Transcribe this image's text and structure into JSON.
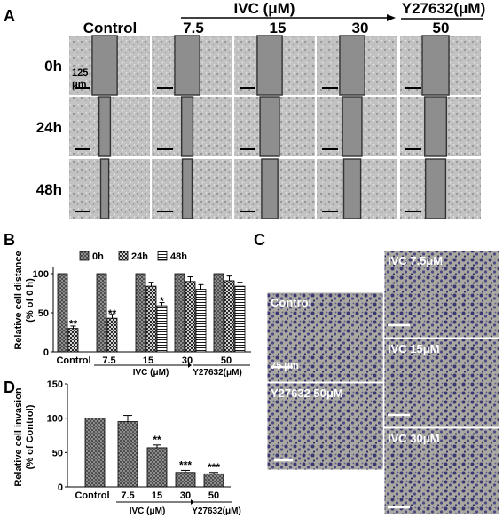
{
  "panel_a": {
    "letter": "A",
    "header_control": "Control",
    "header_ivc": "IVC (μM)",
    "header_y27632": "Y27632(μM)",
    "dose_labels": [
      "7.5",
      "15",
      "30",
      "50"
    ],
    "row_labels": [
      "0h",
      "24h",
      "48h"
    ],
    "scale_label": "125 μm",
    "gap_fraction": [
      [
        0.31,
        0.31,
        0.31,
        0.31,
        0.33
      ],
      [
        0.14,
        0.14,
        0.24,
        0.24,
        0.27
      ],
      [
        0.1,
        0.12,
        0.2,
        0.21,
        0.25
      ]
    ]
  },
  "panel_c": {
    "letter": "C",
    "captions": [
      "Control",
      "Y27632 50μM",
      "IVC 7.5μM",
      "IVC 15μM",
      "IVC 30μM"
    ],
    "scale_label": "75 μm"
  },
  "chart_data": [
    {
      "panel": "B",
      "type": "bar",
      "ylabel": "Relative cell distance\n(% of 0 h)",
      "categories": [
        "Control",
        "7.5",
        "15",
        "30",
        "50"
      ],
      "group_label_ivc": "IVC (μM)",
      "group_label_y27632": "Y27632(μM)",
      "series": [
        {
          "name": "0h",
          "values": [
            100,
            100,
            100,
            100,
            100
          ],
          "errors": [
            0,
            0,
            0,
            0,
            0
          ]
        },
        {
          "name": "24h",
          "values": [
            30,
            43,
            84,
            90,
            91
          ],
          "errors": [
            3,
            5,
            5,
            6,
            6
          ]
        },
        {
          "name": "48h",
          "values": [
            0,
            0,
            59,
            80,
            84
          ],
          "errors": [
            0,
            0,
            4,
            6,
            5
          ]
        }
      ],
      "annotations": [
        {
          "category": "Control",
          "series": "24h",
          "text": "**"
        },
        {
          "category": "7.5",
          "series": "24h",
          "text": "**"
        },
        {
          "category": "15",
          "series": "48h",
          "text": "*"
        }
      ],
      "ylim": [
        0,
        100
      ],
      "yticks": [
        0,
        50,
        100
      ],
      "legend_position": "top"
    },
    {
      "panel": "D",
      "type": "bar",
      "ylabel": "Relative cell invasion\n(% of Control)",
      "categories": [
        "Control",
        "7.5",
        "15",
        "30",
        "50"
      ],
      "group_label_ivc": "IVC (μM)",
      "group_label_y27632": "Y27632(μM)",
      "values": [
        100,
        95,
        57,
        21,
        19
      ],
      "errors": [
        0,
        9,
        4,
        3,
        2
      ],
      "annotations": [
        "",
        "",
        "**",
        "***",
        "***"
      ],
      "ylim": [
        0,
        150
      ],
      "yticks": [
        0,
        50,
        100,
        150
      ]
    }
  ]
}
